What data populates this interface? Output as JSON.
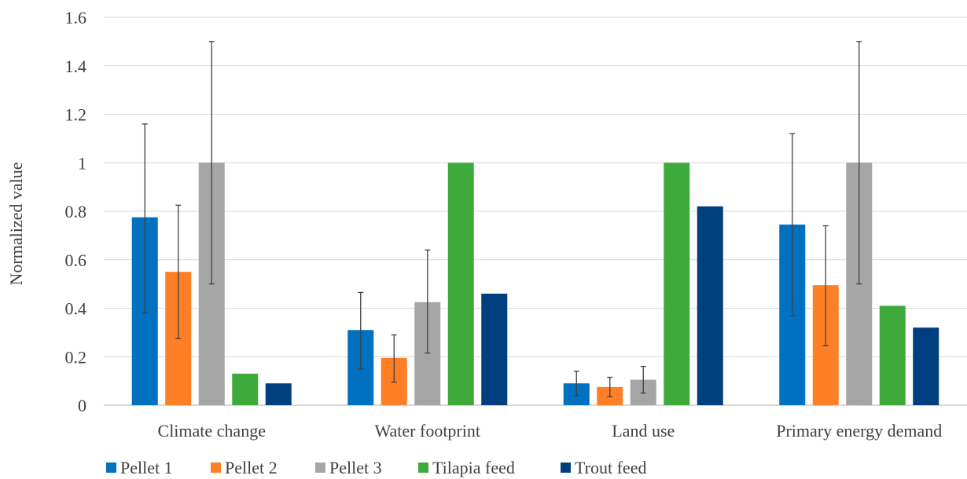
{
  "chart_data": {
    "type": "bar",
    "title": "",
    "xlabel": "",
    "ylabel": "Normalized value",
    "ylim": [
      0,
      1.6
    ],
    "yticks": [
      "0",
      "0.2",
      "0.4",
      "0.6",
      "0.8",
      "1",
      "1.2",
      "1.4",
      "1.6"
    ],
    "ytick_values": [
      0,
      0.2,
      0.4,
      0.6,
      0.8,
      1,
      1.2,
      1.4,
      1.6
    ],
    "grid": true,
    "legend_position": "bottom",
    "categories": [
      "Climate change",
      "Water footprint",
      "Land use",
      "Primary energy demand"
    ],
    "series": [
      {
        "name": "Pellet 1",
        "color": "#0070c0",
        "values": [
          0.775,
          0.31,
          0.09,
          0.745
        ],
        "error_low": [
          0.38,
          0.15,
          0.04,
          0.37
        ],
        "error_high": [
          1.16,
          0.465,
          0.14,
          1.12
        ]
      },
      {
        "name": "Pellet 2",
        "color": "#ff7f27",
        "values": [
          0.55,
          0.195,
          0.075,
          0.495
        ],
        "error_low": [
          0.275,
          0.095,
          0.035,
          0.245
        ],
        "error_high": [
          0.825,
          0.29,
          0.115,
          0.74
        ]
      },
      {
        "name": "Pellet 3",
        "color": "#a5a5a5",
        "values": [
          1.0,
          0.425,
          0.105,
          1.0
        ],
        "error_low": [
          0.5,
          0.215,
          0.05,
          0.5
        ],
        "error_high": [
          1.5,
          0.64,
          0.16,
          1.5
        ]
      },
      {
        "name": "Tilapia feed",
        "color": "#3faa3c",
        "values": [
          0.13,
          1.0,
          1.0,
          0.41
        ]
      },
      {
        "name": "Trout feed",
        "color": "#003f7f",
        "values": [
          0.09,
          0.46,
          0.82,
          0.32
        ]
      }
    ]
  }
}
